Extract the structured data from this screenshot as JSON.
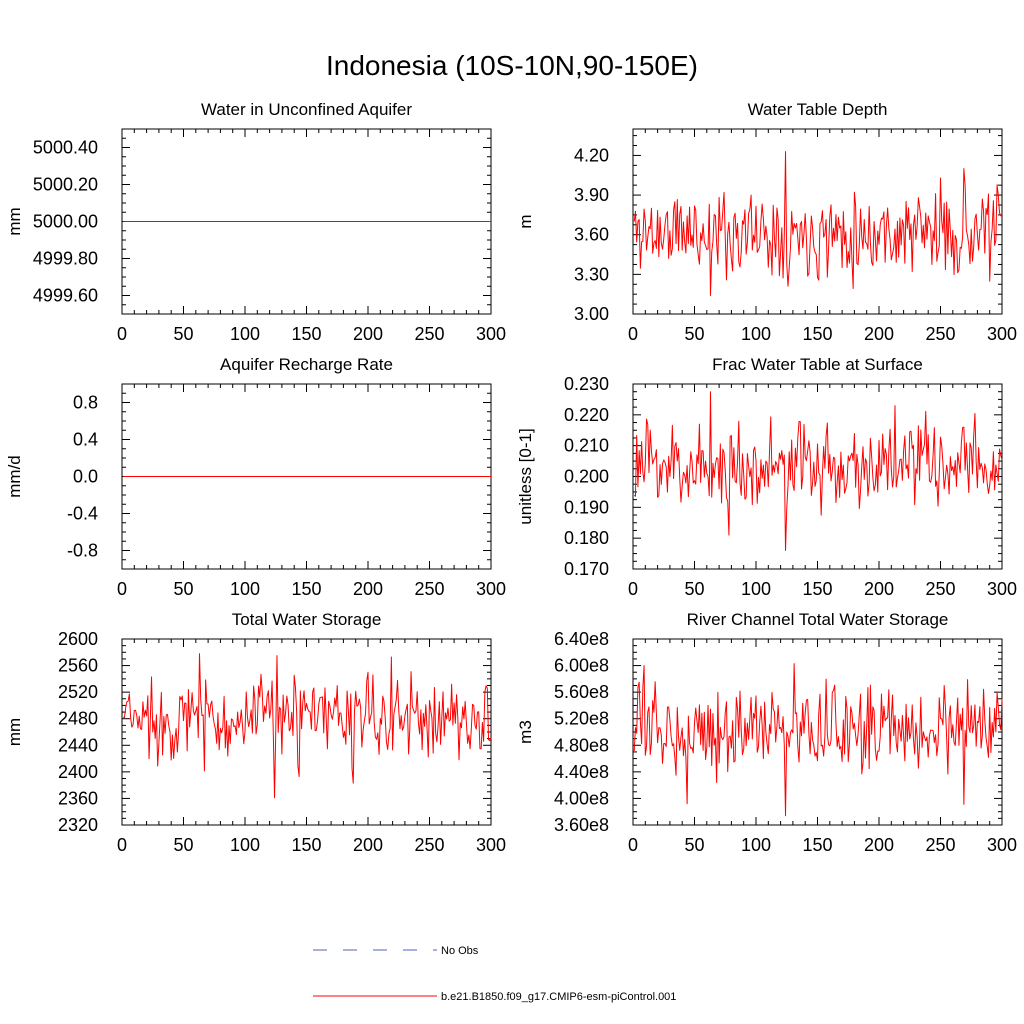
{
  "figure": {
    "title": "Indonesia (10S-10N,90-150E)"
  },
  "series_colors": {
    "model": "#ff0000",
    "obs": "#5060c0"
  },
  "legend": [
    {
      "label": "No Obs",
      "style": "dashed",
      "color": "#5060c0"
    },
    {
      "label": "b.e21.B1850.f09_g17.CMIP6-esm-piControl.001",
      "style": "solid",
      "color": "#ff0000"
    }
  ],
  "chart_data": [
    {
      "type": "line",
      "title": "Water in Unconfined Aquifer",
      "xlabel": "",
      "ylabel": "mm",
      "xlim": [
        0,
        300
      ],
      "ylim": [
        4999.5,
        5000.5
      ],
      "xticks": [
        0,
        50,
        100,
        150,
        200,
        250,
        300
      ],
      "xtick_labels": [
        "0",
        "50",
        "100",
        "150",
        "200",
        "250",
        "300"
      ],
      "yticks": [
        4999.6,
        4999.8,
        5000.0,
        5000.2,
        5000.4
      ],
      "ytick_labels": [
        "4999.60",
        "4999.80",
        "5000.00",
        "5000.20",
        "5000.40"
      ],
      "series": [
        {
          "name": "b.e21.B1850.f09_g17.CMIP6-esm-piControl.001",
          "constant": 5000.0
        }
      ]
    },
    {
      "type": "line",
      "title": "Water Table Depth",
      "xlabel": "",
      "ylabel": "m",
      "xlim": [
        0,
        300
      ],
      "ylim": [
        3.0,
        4.4
      ],
      "xticks": [
        0,
        50,
        100,
        150,
        200,
        250,
        300
      ],
      "xtick_labels": [
        "0",
        "50",
        "100",
        "150",
        "200",
        "250",
        "300"
      ],
      "yticks": [
        3.0,
        3.3,
        3.6,
        3.9,
        4.2
      ],
      "ytick_labels": [
        "3.00",
        "3.30",
        "3.60",
        "3.90",
        "4.20"
      ],
      "series": [
        {
          "name": "b.e21.B1850.f09_g17.CMIP6-esm-piControl.001",
          "mean": 3.62,
          "amp": 0.2,
          "seed": 11,
          "anchors": [
            [
              62,
              3.14
            ],
            [
              123,
              4.23
            ],
            [
              125,
              3.21
            ],
            [
              268,
              4.1
            ],
            [
              0,
              3.7
            ]
          ]
        }
      ]
    },
    {
      "type": "line",
      "title": "Aquifer Recharge Rate",
      "xlabel": "",
      "ylabel": "mm/d",
      "xlim": [
        0,
        300
      ],
      "ylim": [
        -1.0,
        1.0
      ],
      "xticks": [
        0,
        50,
        100,
        150,
        200,
        250,
        300
      ],
      "xtick_labels": [
        "0",
        "50",
        "100",
        "150",
        "200",
        "250",
        "300"
      ],
      "yticks": [
        -0.8,
        -0.4,
        0.0,
        0.4,
        0.8
      ],
      "ytick_labels": [
        "-0.8",
        "-0.4",
        "0.0",
        "0.4",
        "0.8"
      ],
      "series": [
        {
          "name": "b.e21.B1850.f09_g17.CMIP6-esm-piControl.001",
          "constant": 0.0
        }
      ]
    },
    {
      "type": "line",
      "title": "Frac Water Table at Surface",
      "xlabel": "",
      "ylabel": "unitless [0-1]",
      "xlim": [
        0,
        300
      ],
      "ylim": [
        0.17,
        0.23
      ],
      "xticks": [
        0,
        50,
        100,
        150,
        200,
        250,
        300
      ],
      "xtick_labels": [
        "0",
        "50",
        "100",
        "150",
        "200",
        "250",
        "300"
      ],
      "yticks": [
        0.17,
        0.18,
        0.19,
        0.2,
        0.21,
        0.22,
        0.23
      ],
      "ytick_labels": [
        "0.170",
        "0.180",
        "0.190",
        "0.200",
        "0.210",
        "0.220",
        "0.230"
      ],
      "series": [
        {
          "name": "b.e21.B1850.f09_g17.CMIP6-esm-piControl.001",
          "mean": 0.2035,
          "amp": 0.0085,
          "seed": 23,
          "anchors": [
            [
              62,
              0.2275
            ],
            [
              123,
              0.176
            ],
            [
              77,
              0.181
            ],
            [
              212,
              0.223
            ]
          ]
        }
      ]
    },
    {
      "type": "line",
      "title": "Total Water Storage",
      "xlabel": "",
      "ylabel": "mm",
      "xlim": [
        0,
        300
      ],
      "ylim": [
        2320,
        2600
      ],
      "xticks": [
        0,
        50,
        100,
        150,
        200,
        250,
        300
      ],
      "xtick_labels": [
        "0",
        "50",
        "100",
        "150",
        "200",
        "250",
        "300"
      ],
      "yticks": [
        2320,
        2360,
        2400,
        2440,
        2480,
        2520,
        2560,
        2600
      ],
      "ytick_labels": [
        "2320",
        "2360",
        "2400",
        "2440",
        "2480",
        "2520",
        "2560",
        "2600"
      ],
      "series": [
        {
          "name": "b.e21.B1850.f09_g17.CMIP6-esm-piControl.001",
          "mean": 2480,
          "amp": 38,
          "seed": 37,
          "anchors": [
            [
              62,
              2578
            ],
            [
              123,
              2361
            ],
            [
              125,
              2575
            ],
            [
              187,
              2383
            ],
            [
              218,
              2573
            ]
          ]
        }
      ]
    },
    {
      "type": "line",
      "title": "River Channel Total Water Storage",
      "xlabel": "",
      "ylabel": "m3",
      "xlim": [
        0,
        300
      ],
      "ylim": [
        360000000,
        640000000
      ],
      "xticks": [
        0,
        50,
        100,
        150,
        200,
        250,
        300
      ],
      "xtick_labels": [
        "0",
        "50",
        "100",
        "150",
        "200",
        "250",
        "300"
      ],
      "yticks": [
        360000000,
        400000000,
        440000000,
        480000000,
        520000000,
        560000000,
        600000000,
        640000000
      ],
      "ytick_labels": [
        "3.60e8",
        "4.00e8",
        "4.40e8",
        "4.80e8",
        "5.20e8",
        "5.60e8",
        "6.00e8",
        "6.40e8"
      ],
      "series": [
        {
          "name": "b.e21.B1850.f09_g17.CMIP6-esm-piControl.001",
          "mean": 505000000,
          "amp": 38000000,
          "seed": 53,
          "anchors": [
            [
              8,
              600000000
            ],
            [
              123,
              374000000
            ],
            [
              130,
              603000000
            ],
            [
              43,
              392000000
            ],
            [
              268,
              391000000
            ]
          ]
        }
      ]
    }
  ]
}
